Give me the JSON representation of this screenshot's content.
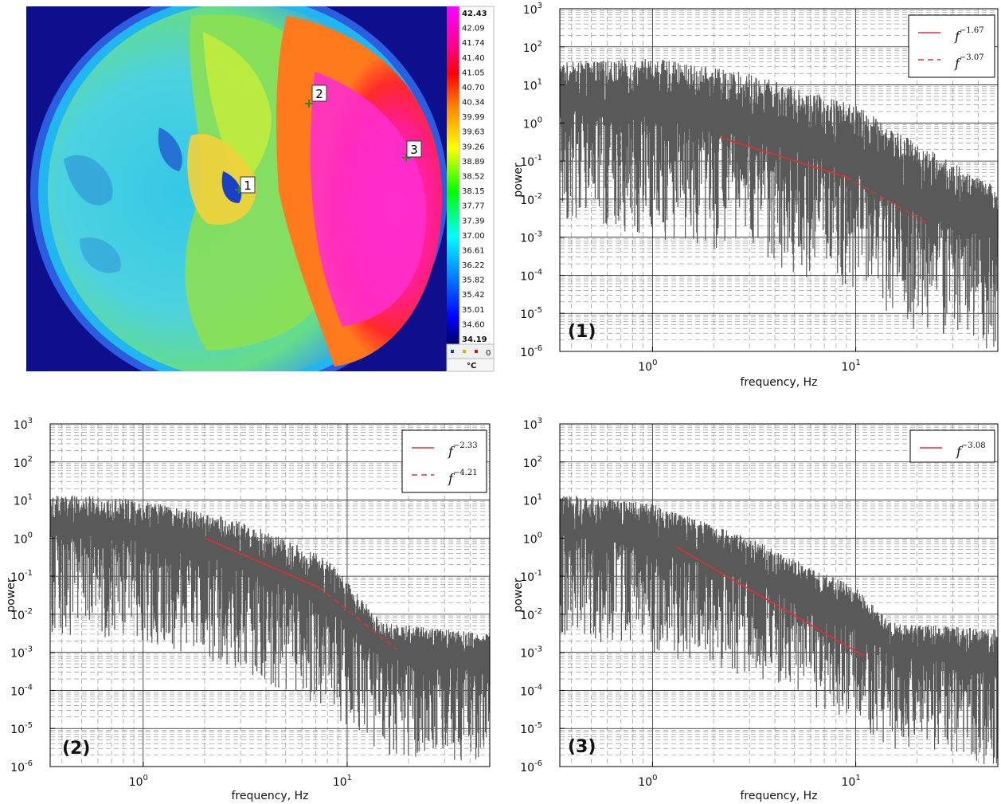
{
  "thermal": {
    "colorbar_values": [
      "42.43",
      "42.09",
      "41.74",
      "41.40",
      "41.05",
      "40.70",
      "40.34",
      "39.99",
      "39.63",
      "39.26",
      "38.89",
      "38.52",
      "38.15",
      "37.77",
      "37.39",
      "37.00",
      "36.61",
      "36.22",
      "35.82",
      "35.42",
      "35.01",
      "34.60",
      "34.19"
    ],
    "colorbar_unit": "°C",
    "colorbar_counter": "0",
    "markers": [
      {
        "label": "1"
      },
      {
        "label": "2"
      },
      {
        "label": "3"
      }
    ]
  },
  "chart_data": [
    {
      "type": "line",
      "panel_label": "(1)",
      "xlabel": "frequency, Hz",
      "ylabel": "power",
      "xscale": "log",
      "yscale": "log",
      "xlim": [
        0.35,
        50
      ],
      "ylim": [
        1e-06,
        1000
      ],
      "grid": true,
      "legend_position": "top-right",
      "series": [
        {
          "name": "power spectrum",
          "color": "#595959",
          "envelope": {
            "x": [
              0.35,
              1,
              3,
              10,
              20,
              50
            ],
            "ymax": [
              40,
              50,
              20,
              3,
              0.3,
              0.02
            ],
            "ymin": [
              0.003,
              0.001,
              0.0003,
              3e-05,
              3e-06,
              1e-06
            ]
          }
        },
        {
          "name": "f^-1.67",
          "legend_base": "f",
          "legend_exp": "−1.67",
          "color": "#e03030",
          "dash": "solid",
          "x": [
            2.2,
            9
          ],
          "y": [
            0.4,
            0.038
          ]
        },
        {
          "name": "f^-3.07",
          "legend_base": "f",
          "legend_exp": "−3.07",
          "color": "#e03030",
          "dash": "dashed",
          "x": [
            9,
            23
          ],
          "y": [
            0.038,
            0.0022
          ]
        }
      ]
    },
    {
      "type": "line",
      "panel_label": "(2)",
      "xlabel": "frequency, Hz",
      "ylabel": "power",
      "xscale": "log",
      "yscale": "log",
      "xlim": [
        0.35,
        50
      ],
      "ylim": [
        1e-06,
        1000
      ],
      "grid": true,
      "legend_position": "top-right",
      "series": [
        {
          "name": "power spectrum",
          "color": "#595959",
          "envelope": {
            "x": [
              0.35,
              1,
              3,
              8,
              15,
              50
            ],
            "ymax": [
              15,
              10,
              3,
              0.3,
              0.006,
              0.003
            ],
            "ymin": [
              0.003,
              0.002,
              0.0003,
              3e-05,
              2e-06,
              1e-06
            ]
          }
        },
        {
          "name": "f^-2.33",
          "legend_base": "f",
          "legend_exp": "−2.33",
          "color": "#e03030",
          "dash": "solid",
          "x": [
            2,
            7.3
          ],
          "y": [
            1,
            0.05
          ]
        },
        {
          "name": "f^-4.21",
          "legend_base": "f",
          "legend_exp": "−4.21",
          "color": "#e03030",
          "dash": "dashed",
          "x": [
            7.3,
            17.5
          ],
          "y": [
            0.05,
            0.0012
          ]
        }
      ]
    },
    {
      "type": "line",
      "panel_label": "(3)",
      "xlabel": "frequency, Hz",
      "ylabel": "power",
      "xscale": "log",
      "yscale": "log",
      "xlim": [
        0.35,
        50
      ],
      "ylim": [
        1e-06,
        1000
      ],
      "grid": true,
      "legend_position": "top-right",
      "series": [
        {
          "name": "power spectrum",
          "color": "#595959",
          "envelope": {
            "x": [
              0.35,
              1,
              3,
              10,
              15,
              50
            ],
            "ymax": [
              15,
              8,
              1,
              0.05,
              0.006,
              0.004
            ],
            "ymin": [
              0.003,
              0.001,
              0.0002,
              1e-05,
              3e-06,
              1e-06
            ]
          }
        },
        {
          "name": "f^-3.08",
          "legend_base": "f",
          "legend_exp": "−3.08",
          "color": "#e03030",
          "dash": "solid",
          "x": [
            1.3,
            11
          ],
          "y": [
            0.6,
            0.0008
          ]
        }
      ]
    }
  ]
}
